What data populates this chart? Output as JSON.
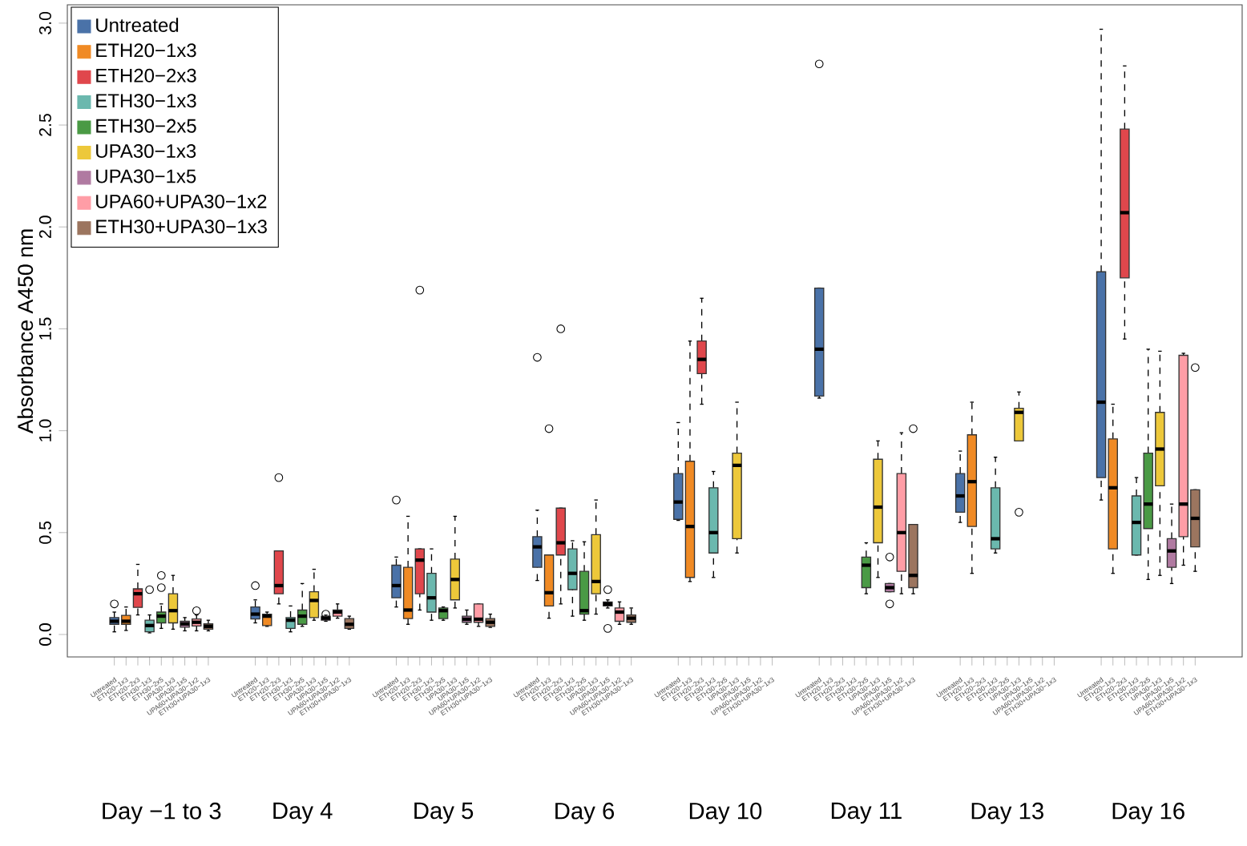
{
  "chart_data": {
    "type": "box",
    "ylabel": "Absorbance A450 nm",
    "ylim": [
      -0.11,
      3.09
    ],
    "yticks": [
      {
        "value": 0,
        "label": "0.0"
      },
      {
        "value": 0.5,
        "label": "0.5"
      },
      {
        "value": 1,
        "label": "1.0"
      },
      {
        "value": 1.5,
        "label": "1.5"
      },
      {
        "value": 2,
        "label": "2.0"
      },
      {
        "value": 2.5,
        "label": "2.5"
      },
      {
        "value": 3,
        "label": "3.0"
      }
    ],
    "categories": [
      "Day −1 to 3",
      "Day 4",
      "Day 5",
      "Day 6",
      "Day 10",
      "Day 11",
      "Day 13",
      "Day 16"
    ],
    "legend": "top left",
    "series": [
      {
        "name": "Untreated",
        "color": "#4a72a8",
        "boxes": [
          {
            "low": 0.013,
            "q1": 0.05,
            "median": 0.065,
            "q3": 0.083,
            "high": 0.11,
            "outliers": [
              0.15
            ]
          },
          {
            "low": 0.057,
            "q1": 0.076,
            "median": 0.1,
            "q3": 0.135,
            "high": 0.17,
            "outliers": [
              0.24
            ]
          },
          {
            "low": 0.135,
            "q1": 0.18,
            "median": 0.24,
            "q3": 0.34,
            "high": 0.38,
            "outliers": [
              0.66
            ]
          },
          {
            "low": 0.265,
            "q1": 0.33,
            "median": 0.43,
            "q3": 0.48,
            "high": 0.61,
            "outliers": [
              1.36
            ]
          },
          {
            "low": 0.56,
            "q1": 0.565,
            "median": 0.65,
            "q3": 0.79,
            "high": 1.04
          },
          {
            "low": 1.16,
            "q1": 1.17,
            "median": 1.4,
            "q3": 1.7,
            "high": 1.7,
            "outliers": [
              2.8
            ]
          },
          {
            "low": 0.55,
            "q1": 0.6,
            "median": 0.68,
            "q3": 0.79,
            "high": 0.9
          },
          {
            "low": 0.66,
            "q1": 0.77,
            "median": 1.14,
            "q3": 1.78,
            "high": 2.97
          }
        ]
      },
      {
        "name": "ETH20−1x3",
        "color": "#f08a24",
        "boxes": [
          {
            "low": 0.02,
            "q1": 0.05,
            "median": 0.065,
            "q3": 0.094,
            "high": 0.135
          },
          {
            "low": 0.04,
            "q1": 0.044,
            "median": 0.09,
            "q3": 0.1,
            "high": 0.11
          },
          {
            "low": 0.05,
            "q1": 0.078,
            "median": 0.12,
            "q3": 0.33,
            "high": 0.58
          },
          {
            "low": 0.08,
            "q1": 0.14,
            "median": 0.205,
            "q3": 0.39,
            "high": 0.39,
            "outliers": [
              1.01
            ]
          },
          {
            "low": 0.26,
            "q1": 0.28,
            "median": 0.53,
            "q3": 0.85,
            "high": 1.44
          },
          null,
          {
            "low": 0.3,
            "q1": 0.53,
            "median": 0.75,
            "q3": 0.98,
            "high": 1.14
          },
          {
            "low": 0.3,
            "q1": 0.42,
            "median": 0.72,
            "q3": 0.96,
            "high": 1.13
          }
        ]
      },
      {
        "name": "ETH20−2x3",
        "color": "#e0474c",
        "boxes": [
          {
            "low": 0.096,
            "q1": 0.133,
            "median": 0.2,
            "q3": 0.224,
            "high": 0.344
          },
          {
            "low": 0.15,
            "q1": 0.2,
            "median": 0.24,
            "q3": 0.41,
            "high": 0.41,
            "outliers": [
              0.77
            ]
          },
          {
            "low": 0.12,
            "q1": 0.2,
            "median": 0.365,
            "q3": 0.42,
            "high": 0.42,
            "outliers": [
              1.69
            ]
          },
          {
            "low": 0.15,
            "q1": 0.39,
            "median": 0.45,
            "q3": 0.62,
            "high": 0.62,
            "outliers": [
              1.5
            ]
          },
          {
            "low": 1.13,
            "q1": 1.28,
            "median": 1.35,
            "q3": 1.44,
            "high": 1.65
          },
          null,
          null,
          {
            "low": 1.45,
            "q1": 1.75,
            "median": 2.07,
            "q3": 2.48,
            "high": 2.79
          }
        ]
      },
      {
        "name": "ETH30−1x3",
        "color": "#6bb8ae",
        "boxes": [
          {
            "low": 0.008,
            "q1": 0.013,
            "median": 0.044,
            "q3": 0.07,
            "high": 0.096,
            "outliers": [
              0.22
            ]
          },
          {
            "low": 0.013,
            "q1": 0.03,
            "median": 0.07,
            "q3": 0.083,
            "high": 0.14
          },
          {
            "low": 0.07,
            "q1": 0.11,
            "median": 0.18,
            "q3": 0.3,
            "high": 0.42
          },
          {
            "low": 0.09,
            "q1": 0.22,
            "median": 0.3,
            "q3": 0.42,
            "high": 0.46
          },
          {
            "low": 0.28,
            "q1": 0.4,
            "median": 0.5,
            "q3": 0.72,
            "high": 0.8
          },
          null,
          {
            "low": 0.4,
            "q1": 0.42,
            "median": 0.47,
            "q3": 0.72,
            "high": 0.87
          },
          {
            "low": 0.39,
            "q1": 0.39,
            "median": 0.55,
            "q3": 0.68,
            "high": 0.77
          }
        ]
      },
      {
        "name": "ETH30−2x5",
        "color": "#4a9a45",
        "boxes": [
          {
            "low": 0.03,
            "q1": 0.057,
            "median": 0.09,
            "q3": 0.11,
            "high": 0.15,
            "outliers": [
              0.23,
              0.29
            ]
          },
          {
            "low": 0.04,
            "q1": 0.05,
            "median": 0.09,
            "q3": 0.12,
            "high": 0.25
          },
          {
            "low": 0.07,
            "q1": 0.078,
            "median": 0.117,
            "q3": 0.13,
            "high": 0.135
          },
          {
            "low": 0.07,
            "q1": 0.1,
            "median": 0.117,
            "q3": 0.31,
            "high": 0.455
          },
          null,
          {
            "low": 0.2,
            "q1": 0.23,
            "median": 0.34,
            "q3": 0.38,
            "high": 0.45
          },
          null,
          {
            "low": 0.27,
            "q1": 0.52,
            "median": 0.64,
            "q3": 0.89,
            "high": 1.4
          }
        ]
      },
      {
        "name": "UPA30−1x3",
        "color": "#edc83a",
        "boxes": [
          {
            "low": 0.026,
            "q1": 0.057,
            "median": 0.117,
            "q3": 0.2,
            "high": 0.29
          },
          {
            "low": 0.07,
            "q1": 0.083,
            "median": 0.167,
            "q3": 0.21,
            "high": 0.32
          },
          {
            "low": 0.13,
            "q1": 0.17,
            "median": 0.27,
            "q3": 0.37,
            "high": 0.58
          },
          {
            "low": 0.1,
            "q1": 0.2,
            "median": 0.26,
            "q3": 0.49,
            "high": 0.66
          },
          {
            "low": 0.4,
            "q1": 0.47,
            "median": 0.83,
            "q3": 0.89,
            "high": 1.14
          },
          {
            "low": 0.28,
            "q1": 0.45,
            "median": 0.625,
            "q3": 0.86,
            "high": 0.95
          },
          {
            "low": 0.95,
            "q1": 0.95,
            "median": 1.09,
            "q3": 1.11,
            "high": 1.19,
            "outliers": [
              0.6
            ]
          },
          {
            "low": 0.29,
            "q1": 0.73,
            "median": 0.91,
            "q3": 1.09,
            "high": 1.39
          }
        ]
      },
      {
        "name": "UPA30−1x5",
        "color": "#b07aa1",
        "boxes": [
          {
            "low": 0.018,
            "q1": 0.036,
            "median": 0.052,
            "q3": 0.065,
            "high": 0.083
          },
          {
            "low": 0.065,
            "q1": 0.07,
            "median": 0.08,
            "q3": 0.09,
            "high": 0.095,
            "outliers": [
              0.1
            ]
          },
          {
            "low": 0.05,
            "q1": 0.06,
            "median": 0.075,
            "q3": 0.09,
            "high": 0.12
          },
          {
            "low": 0.13,
            "q1": 0.14,
            "median": 0.15,
            "q3": 0.16,
            "high": 0.17,
            "outliers": [
              0.22,
              0.03
            ]
          },
          null,
          {
            "low": 0.21,
            "q1": 0.21,
            "median": 0.23,
            "q3": 0.25,
            "high": 0.25,
            "outliers": [
              0.38,
              0.15
            ]
          },
          null,
          {
            "low": 0.25,
            "q1": 0.33,
            "median": 0.41,
            "q3": 0.47,
            "high": 0.64
          }
        ]
      },
      {
        "name": "UPA60+UPA30−1x2",
        "color": "#ff9da6",
        "boxes": [
          {
            "low": 0.018,
            "q1": 0.042,
            "median": 0.06,
            "q3": 0.076,
            "high": 0.096,
            "outliers": [
              0.117
            ]
          },
          {
            "low": 0.08,
            "q1": 0.09,
            "median": 0.11,
            "q3": 0.12,
            "high": 0.15
          },
          {
            "low": 0.04,
            "q1": 0.06,
            "median": 0.075,
            "q3": 0.15,
            "high": 0.15
          },
          {
            "low": 0.05,
            "q1": 0.065,
            "median": 0.11,
            "q3": 0.13,
            "high": 0.16
          },
          null,
          {
            "low": 0.2,
            "q1": 0.31,
            "median": 0.5,
            "q3": 0.79,
            "high": 0.99
          },
          null,
          {
            "low": 0.34,
            "q1": 0.48,
            "median": 0.64,
            "q3": 1.37,
            "high": 1.38
          }
        ]
      },
      {
        "name": "ETH30+UPA30−1x3",
        "color": "#9c755f",
        "boxes": [
          {
            "low": 0.018,
            "q1": 0.026,
            "median": 0.04,
            "q3": 0.052,
            "high": 0.07
          },
          {
            "low": 0.026,
            "q1": 0.03,
            "median": 0.05,
            "q3": 0.078,
            "high": 0.09
          },
          {
            "low": 0.035,
            "q1": 0.04,
            "median": 0.06,
            "q3": 0.078,
            "high": 0.1
          },
          {
            "low": 0.05,
            "q1": 0.06,
            "median": 0.08,
            "q3": 0.096,
            "high": 0.13
          },
          null,
          {
            "low": 0.2,
            "q1": 0.23,
            "median": 0.29,
            "q3": 0.54,
            "high": 0.54,
            "outliers": [
              1.01
            ]
          },
          null,
          {
            "low": 0.31,
            "q1": 0.43,
            "median": 0.57,
            "q3": 0.71,
            "high": 0.71,
            "outliers": [
              1.31
            ]
          }
        ]
      }
    ]
  }
}
